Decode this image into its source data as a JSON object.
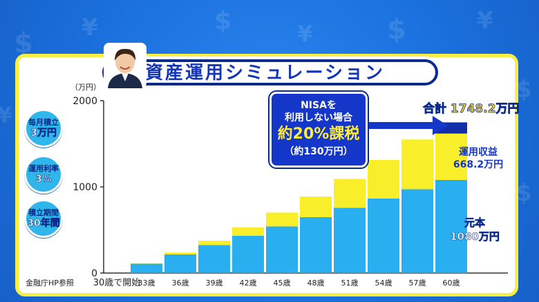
{
  "title": "資産運用シミュレーション",
  "unit_label": "（万円）",
  "source_note": "金融庁HP参照",
  "badges": [
    {
      "line1": "毎月積立",
      "line2": "3万円"
    },
    {
      "line1": "運用利率",
      "line2": "3%"
    },
    {
      "line1": "積立期間",
      "line2": "30年間"
    }
  ],
  "callout": {
    "line1": "NISAを",
    "line2": "利用しない場合",
    "line3": "約20%課税",
    "line4": "（約130万円）"
  },
  "total_label": "合計 1748.2万円",
  "gain_label": {
    "line1": "運用収益",
    "line2": "668.2万円"
  },
  "principal_label": {
    "line1": "元本",
    "line2": "1080万円"
  },
  "colors": {
    "principal": "#29aef0",
    "gain": "#f8ee2a",
    "tax": "#0f2ea8",
    "background": "#1a6fdc",
    "frame": "#f8ee46"
  },
  "icons": [
    "person-avatar-icon",
    "arrow-right-icon",
    "dollar-sign-icon",
    "yen-sign-icon"
  ],
  "chart_data": {
    "type": "bar",
    "stacked": true,
    "categories": [
      "30歳で開始",
      "33歳",
      "36歳",
      "39歳",
      "42歳",
      "45歳",
      "48歳",
      "51歳",
      "54歳",
      "57歳",
      "60歳"
    ],
    "series": [
      {
        "key": "principal",
        "values": [
          0,
          108,
          216,
          324,
          432,
          540,
          648,
          756,
          864,
          972,
          1080
        ]
      },
      {
        "key": "gain",
        "values": [
          0,
          5,
          22,
          52,
          98,
          161,
          240,
          336,
          448,
          578,
          538.2
        ]
      },
      {
        "key": "tax",
        "values": [
          0,
          0,
          0,
          0,
          0,
          0,
          0,
          0,
          0,
          0,
          130
        ]
      }
    ],
    "yticks": [
      0,
      1000,
      2000
    ],
    "ylim": [
      0,
      2000
    ],
    "grid": false
  }
}
